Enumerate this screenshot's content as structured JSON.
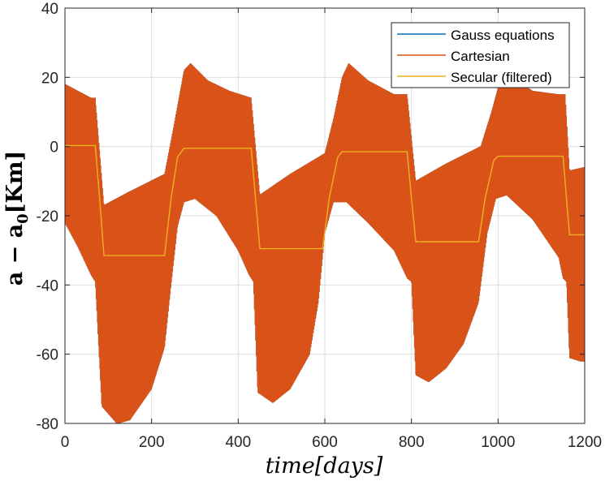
{
  "chart_data": {
    "type": "line",
    "xlabel": "time[days]",
    "ylabel": "a − a0[Km]",
    "ylabel_main": "a − a",
    "ylabel_sub": "0",
    "ylabel_unit": "[Km]",
    "xlim": [
      0,
      1200
    ],
    "ylim": [
      -80,
      40
    ],
    "xticks": [
      0,
      200,
      400,
      600,
      800,
      1000,
      1200
    ],
    "yticks": [
      -80,
      -60,
      -40,
      -20,
      0,
      20,
      40
    ],
    "grid": true,
    "legend_position": "top-right",
    "series": [
      {
        "name": "Gauss equations",
        "color": "#0072BD",
        "style": "rapid oscillation, hidden beneath Cartesian band",
        "upper": [
          [
            0,
            18
          ],
          [
            60,
            14
          ],
          [
            70,
            14
          ],
          [
            90,
            -17
          ],
          [
            150,
            -13
          ],
          [
            230,
            -8
          ],
          [
            250,
            5
          ],
          [
            275,
            22
          ],
          [
            290,
            24
          ],
          [
            330,
            19
          ],
          [
            380,
            16
          ],
          [
            430,
            14
          ],
          [
            450,
            -14
          ],
          [
            520,
            -8
          ],
          [
            600,
            -2
          ],
          [
            620,
            8
          ],
          [
            640,
            20
          ],
          [
            655,
            24
          ],
          [
            700,
            19
          ],
          [
            760,
            15
          ],
          [
            790,
            15
          ],
          [
            810,
            -10
          ],
          [
            880,
            -5
          ],
          [
            960,
            0
          ],
          [
            985,
            10
          ],
          [
            1000,
            17
          ],
          [
            1020,
            21
          ],
          [
            1080,
            16
          ],
          [
            1140,
            15
          ],
          [
            1155,
            15
          ],
          [
            1165,
            -7
          ],
          [
            1200,
            -6
          ]
        ],
        "lower": [
          [
            0,
            -22
          ],
          [
            30,
            -29
          ],
          [
            60,
            -37
          ],
          [
            70,
            -39
          ],
          [
            85,
            -75
          ],
          [
            120,
            -80
          ],
          [
            150,
            -79
          ],
          [
            200,
            -70
          ],
          [
            230,
            -58
          ],
          [
            245,
            -40
          ],
          [
            260,
            -23
          ],
          [
            275,
            -16
          ],
          [
            300,
            -15
          ],
          [
            350,
            -20
          ],
          [
            400,
            -30
          ],
          [
            425,
            -37
          ],
          [
            435,
            -39
          ],
          [
            445,
            -71
          ],
          [
            480,
            -74
          ],
          [
            520,
            -70
          ],
          [
            565,
            -60
          ],
          [
            585,
            -45
          ],
          [
            600,
            -25
          ],
          [
            620,
            -16
          ],
          [
            650,
            -16
          ],
          [
            700,
            -22
          ],
          [
            760,
            -30
          ],
          [
            790,
            -38
          ],
          [
            800,
            -39
          ],
          [
            810,
            -66
          ],
          [
            840,
            -68
          ],
          [
            880,
            -64
          ],
          [
            920,
            -57
          ],
          [
            955,
            -45
          ],
          [
            975,
            -25
          ],
          [
            995,
            -15
          ],
          [
            1020,
            -14
          ],
          [
            1080,
            -21
          ],
          [
            1140,
            -32
          ],
          [
            1150,
            -38
          ],
          [
            1158,
            -39
          ],
          [
            1165,
            -61
          ],
          [
            1190,
            -62
          ],
          [
            1200,
            -62
          ]
        ]
      },
      {
        "name": "Cartesian",
        "color": "#D95319",
        "style": "rapid oscillation, filled band between envelopes",
        "upper": [
          [
            0,
            18
          ],
          [
            60,
            14
          ],
          [
            70,
            14
          ],
          [
            90,
            -17
          ],
          [
            150,
            -13
          ],
          [
            230,
            -8
          ],
          [
            250,
            5
          ],
          [
            275,
            22
          ],
          [
            290,
            24
          ],
          [
            330,
            19
          ],
          [
            380,
            16
          ],
          [
            430,
            14
          ],
          [
            450,
            -14
          ],
          [
            520,
            -8
          ],
          [
            600,
            -2
          ],
          [
            620,
            8
          ],
          [
            640,
            20
          ],
          [
            655,
            24
          ],
          [
            700,
            19
          ],
          [
            760,
            15
          ],
          [
            790,
            15
          ],
          [
            810,
            -10
          ],
          [
            880,
            -5
          ],
          [
            960,
            0
          ],
          [
            985,
            10
          ],
          [
            1000,
            17
          ],
          [
            1020,
            21
          ],
          [
            1080,
            16
          ],
          [
            1140,
            15
          ],
          [
            1155,
            15
          ],
          [
            1165,
            -7
          ],
          [
            1200,
            -6
          ]
        ],
        "lower": [
          [
            0,
            -22
          ],
          [
            30,
            -29
          ],
          [
            60,
            -37
          ],
          [
            70,
            -39
          ],
          [
            85,
            -75
          ],
          [
            120,
            -80
          ],
          [
            150,
            -79
          ],
          [
            200,
            -70
          ],
          [
            230,
            -58
          ],
          [
            245,
            -40
          ],
          [
            260,
            -23
          ],
          [
            275,
            -16
          ],
          [
            300,
            -15
          ],
          [
            350,
            -20
          ],
          [
            400,
            -30
          ],
          [
            425,
            -37
          ],
          [
            435,
            -39
          ],
          [
            445,
            -71
          ],
          [
            480,
            -74
          ],
          [
            520,
            -70
          ],
          [
            565,
            -60
          ],
          [
            585,
            -45
          ],
          [
            600,
            -25
          ],
          [
            620,
            -16
          ],
          [
            650,
            -16
          ],
          [
            700,
            -22
          ],
          [
            760,
            -30
          ],
          [
            790,
            -38
          ],
          [
            800,
            -39
          ],
          [
            810,
            -66
          ],
          [
            840,
            -68
          ],
          [
            880,
            -64
          ],
          [
            920,
            -57
          ],
          [
            955,
            -45
          ],
          [
            975,
            -25
          ],
          [
            995,
            -15
          ],
          [
            1020,
            -14
          ],
          [
            1080,
            -21
          ],
          [
            1140,
            -32
          ],
          [
            1150,
            -38
          ],
          [
            1158,
            -39
          ],
          [
            1165,
            -61
          ],
          [
            1190,
            -62
          ],
          [
            1200,
            -62
          ]
        ]
      },
      {
        "name": "Secular (filtered)",
        "color": "#EDB120",
        "points": [
          [
            0,
            0.3
          ],
          [
            70,
            0.3
          ],
          [
            80,
            -15
          ],
          [
            90,
            -31.5
          ],
          [
            230,
            -31.5
          ],
          [
            245,
            -15
          ],
          [
            260,
            -3
          ],
          [
            275,
            -0.5
          ],
          [
            430,
            -0.5
          ],
          [
            440,
            -15
          ],
          [
            450,
            -29.5
          ],
          [
            595,
            -29.5
          ],
          [
            610,
            -15
          ],
          [
            630,
            -3
          ],
          [
            640,
            -1.5
          ],
          [
            790,
            -1.5
          ],
          [
            800,
            -15
          ],
          [
            810,
            -27.5
          ],
          [
            955,
            -27.5
          ],
          [
            970,
            -15
          ],
          [
            990,
            -4
          ],
          [
            1000,
            -2.8
          ],
          [
            1150,
            -2.8
          ],
          [
            1158,
            -15
          ],
          [
            1165,
            -25.5
          ],
          [
            1200,
            -25.5
          ]
        ]
      }
    ]
  }
}
